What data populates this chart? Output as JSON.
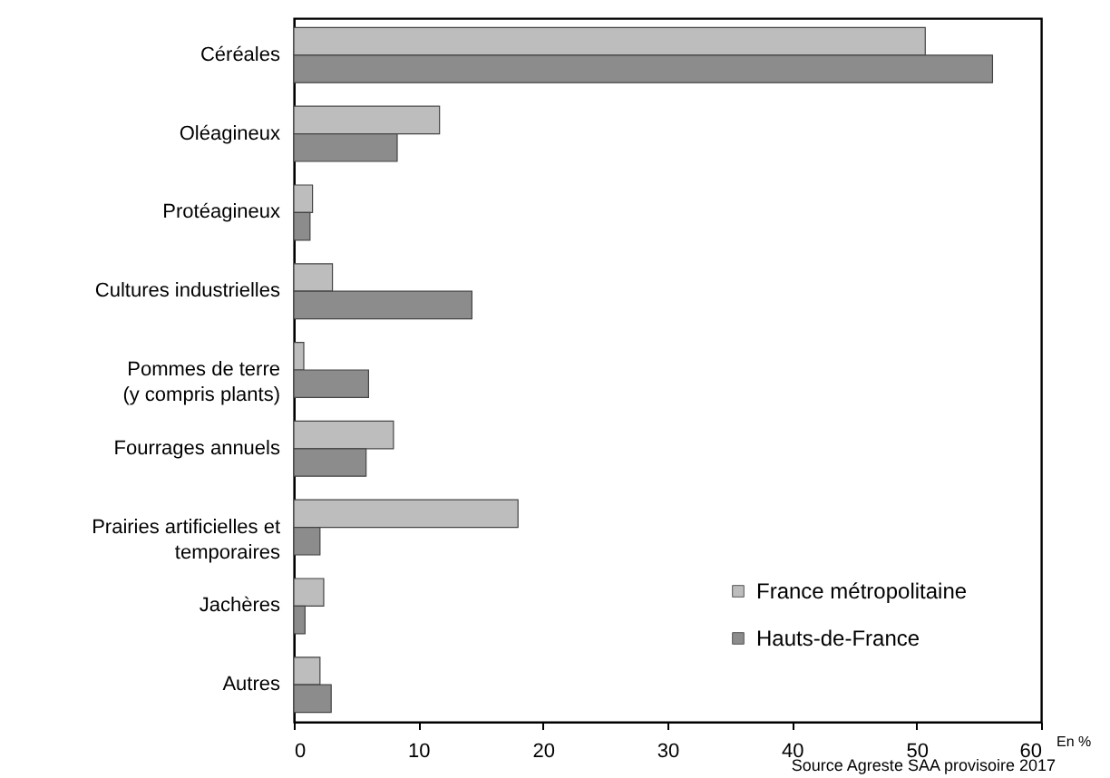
{
  "chart_data": {
    "type": "bar",
    "orientation": "horizontal",
    "categories": [
      "Céréales",
      "Oléagineux",
      "Protéagineux",
      "Cultures industrielles",
      "Pommes de terre\n(y compris plants)",
      "Fourrages annuels",
      "Prairies artificielles et\ntemporaires",
      "Jachères",
      "Autres"
    ],
    "series": [
      {
        "name": "France métropolitaine",
        "color": "#bdbdbd",
        "values": [
          50.7,
          11.7,
          1.5,
          3.1,
          0.8,
          8.0,
          18.0,
          2.4,
          2.1
        ]
      },
      {
        "name": "Hauts-de-France",
        "color": "#8c8c8c",
        "values": [
          56.1,
          8.3,
          1.3,
          14.3,
          6.0,
          5.8,
          2.1,
          0.9,
          3.0
        ]
      }
    ],
    "xlabel": "En %",
    "xlim": [
      0,
      60
    ],
    "xticks": [
      0,
      10,
      20,
      30,
      40,
      50,
      60
    ],
    "grid": false,
    "legend": "bottom right",
    "annotations": [
      "Source  Agreste SAA provisoire 2017"
    ]
  }
}
